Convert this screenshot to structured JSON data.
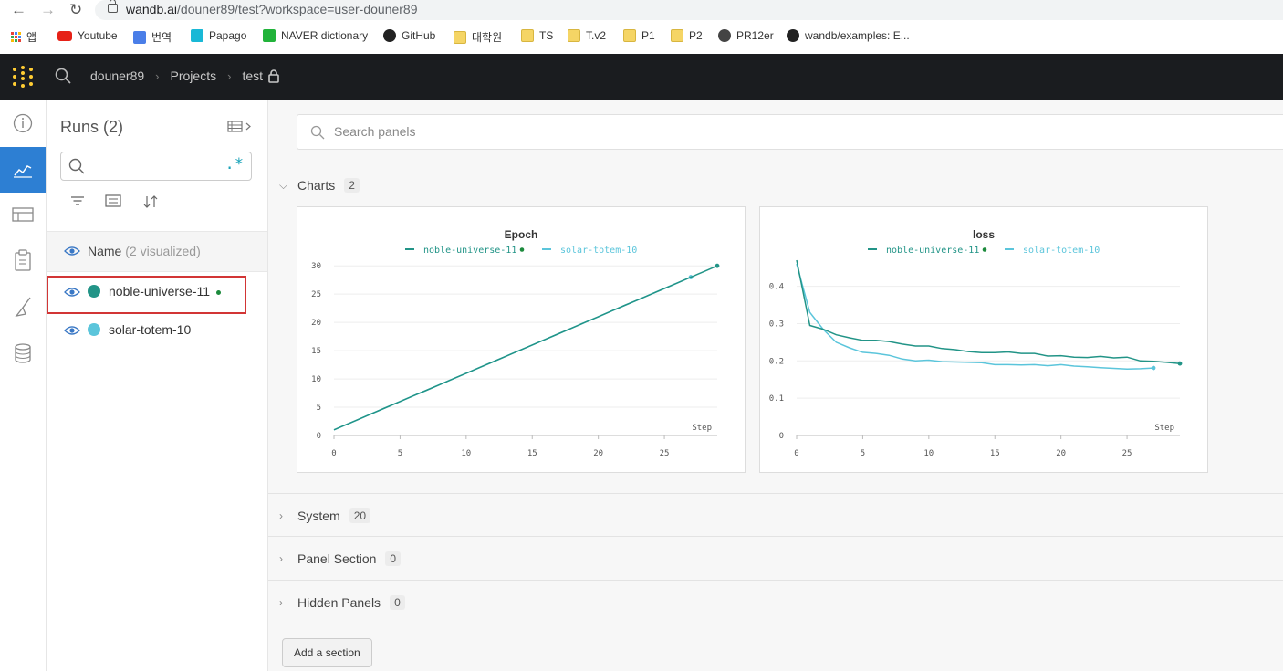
{
  "browser": {
    "url_host": "wandb.ai",
    "url_rest": "/douner89/test?workspace=user-douner89",
    "bookmarks": [
      {
        "label": "앱",
        "icon": "apps-grid-icon"
      },
      {
        "label": "Youtube",
        "icon": "youtube-icon"
      },
      {
        "label": "번역",
        "icon": "translate-icon"
      },
      {
        "label": "Papago",
        "icon": "papago-icon"
      },
      {
        "label": "NAVER dictionary",
        "icon": "naver-icon"
      },
      {
        "label": "GitHub",
        "icon": "github-icon"
      },
      {
        "label": "대학원",
        "icon": "folder-icon"
      },
      {
        "label": "TS",
        "icon": "folder-icon"
      },
      {
        "label": "T.v2",
        "icon": "folder-icon"
      },
      {
        "label": "P1",
        "icon": "folder-icon"
      },
      {
        "label": "P2",
        "icon": "folder-icon"
      },
      {
        "label": "PR12er",
        "icon": "globe-icon"
      },
      {
        "label": "wandb/examples: E...",
        "icon": "github-icon"
      }
    ]
  },
  "header": {
    "breadcrumb": [
      "douner89",
      "Projects",
      "test"
    ]
  },
  "runs": {
    "title": "Runs (2)",
    "name_header": "Name",
    "visualized": "(2 visualized)",
    "regex_label": ".*",
    "items": [
      {
        "name": "noble-universe-11",
        "color": "#229487",
        "live": true
      },
      {
        "name": "solar-totem-10",
        "color": "#5bc5db",
        "live": false
      }
    ]
  },
  "main": {
    "search_placeholder": "Search panels",
    "sections": [
      {
        "name": "Charts",
        "count": "2",
        "expanded": true
      },
      {
        "name": "System",
        "count": "20",
        "expanded": false
      },
      {
        "name": "Panel Section",
        "count": "0",
        "expanded": false
      },
      {
        "name": "Hidden Panels",
        "count": "0",
        "expanded": false
      }
    ],
    "add_section_label": "Add a section"
  },
  "chart_data": [
    {
      "type": "line",
      "title": "Epoch",
      "xlabel": "Step",
      "ylabel": "",
      "xlim": [
        0,
        29
      ],
      "ylim": [
        0,
        31
      ],
      "xticks": [
        0,
        5,
        10,
        15,
        20,
        25
      ],
      "yticks": [
        0,
        5,
        10,
        15,
        20,
        25,
        30
      ],
      "series": [
        {
          "name": "noble-universe-11",
          "color": "#229487",
          "live": true,
          "x": [
            0,
            1,
            2,
            3,
            4,
            5,
            6,
            7,
            8,
            9,
            10,
            11,
            12,
            13,
            14,
            15,
            16,
            17,
            18,
            19,
            20,
            21,
            22,
            23,
            24,
            25,
            26,
            27,
            28,
            29
          ],
          "y": [
            1,
            2,
            3,
            4,
            5,
            6,
            7,
            8,
            9,
            10,
            11,
            12,
            13,
            14,
            15,
            16,
            17,
            18,
            19,
            20,
            21,
            22,
            23,
            24,
            25,
            26,
            27,
            28,
            29,
            30
          ]
        },
        {
          "name": "solar-totem-10",
          "color": "#5bc5db",
          "live": false,
          "x": [
            0,
            1,
            2,
            3,
            4,
            5,
            6,
            7,
            8,
            9,
            10,
            11,
            12,
            13,
            14,
            15,
            16,
            17,
            18,
            19,
            20,
            21,
            22,
            23,
            24,
            25,
            26,
            27
          ],
          "y": [
            1,
            2,
            3,
            4,
            5,
            6,
            7,
            8,
            9,
            10,
            11,
            12,
            13,
            14,
            15,
            16,
            17,
            18,
            19,
            20,
            21,
            22,
            23,
            24,
            25,
            26,
            27,
            28
          ]
        }
      ]
    },
    {
      "type": "line",
      "title": "loss",
      "xlabel": "Step",
      "ylabel": "",
      "xlim": [
        0,
        29
      ],
      "ylim": [
        0,
        0.47
      ],
      "xticks": [
        0,
        5,
        10,
        15,
        20,
        25
      ],
      "yticks": [
        0,
        0.1,
        0.2,
        0.3,
        0.4
      ],
      "series": [
        {
          "name": "noble-universe-11",
          "color": "#229487",
          "live": true,
          "x": [
            0,
            1,
            2,
            3,
            4,
            5,
            6,
            7,
            8,
            9,
            10,
            11,
            12,
            13,
            14,
            15,
            16,
            17,
            18,
            19,
            20,
            21,
            22,
            23,
            24,
            25,
            26,
            27,
            28,
            29
          ],
          "y": [
            0.47,
            0.295,
            0.285,
            0.27,
            0.262,
            0.255,
            0.255,
            0.252,
            0.245,
            0.24,
            0.24,
            0.233,
            0.23,
            0.225,
            0.222,
            0.222,
            0.224,
            0.22,
            0.22,
            0.213,
            0.214,
            0.21,
            0.209,
            0.212,
            0.208,
            0.21,
            0.2,
            0.199,
            0.196,
            0.193
          ]
        },
        {
          "name": "solar-totem-10",
          "color": "#5bc5db",
          "live": false,
          "x": [
            0,
            1,
            2,
            3,
            4,
            5,
            6,
            7,
            8,
            9,
            10,
            11,
            12,
            13,
            14,
            15,
            16,
            17,
            18,
            19,
            20,
            21,
            22,
            23,
            24,
            25,
            26,
            27
          ],
          "y": [
            0.46,
            0.33,
            0.285,
            0.25,
            0.235,
            0.223,
            0.22,
            0.215,
            0.205,
            0.2,
            0.202,
            0.198,
            0.197,
            0.196,
            0.195,
            0.19,
            0.19,
            0.189,
            0.19,
            0.187,
            0.19,
            0.186,
            0.184,
            0.182,
            0.18,
            0.178,
            0.179,
            0.181
          ]
        }
      ]
    }
  ]
}
